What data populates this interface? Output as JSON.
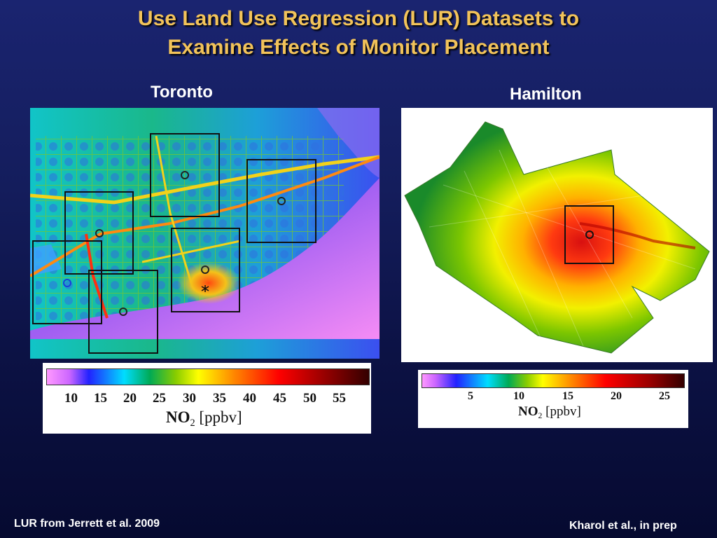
{
  "slide": {
    "title_line1": "Use Land Use Regression (LUR) Datasets to",
    "title_line2": "Examine Effects of Monitor Placement"
  },
  "toronto": {
    "label": "Toronto",
    "legend": {
      "ticks": [
        "10",
        "15",
        "20",
        "25",
        "30",
        "35",
        "40",
        "45",
        "50",
        "55"
      ],
      "pollutant": "NO",
      "subscript": "2",
      "unit": "[ppbv]"
    }
  },
  "hamilton": {
    "label": "Hamilton",
    "legend": {
      "ticks": [
        "5",
        "10",
        "15",
        "20",
        "25"
      ],
      "pollutant": "NO",
      "subscript": "2",
      "unit": "[ppbv]"
    }
  },
  "colors": {
    "title": "#f2c35a",
    "scale": [
      "#ff99ff",
      "#cc66ff",
      "#2222ff",
      "#00ddff",
      "#00aa55",
      "#88cc00",
      "#ffff00",
      "#ff8800",
      "#ff0000",
      "#990000",
      "#330000"
    ]
  },
  "footer": {
    "left": "LUR from Jerrett et al. 2009",
    "right": "Kharol et al., in prep"
  }
}
